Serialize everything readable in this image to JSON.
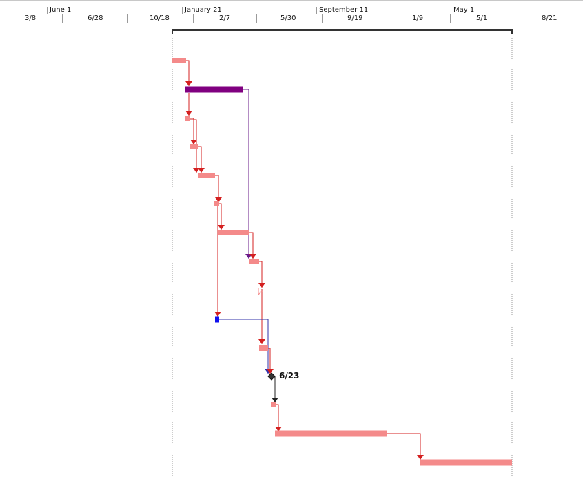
{
  "timescale": {
    "major": [
      "June 1",
      "January 21",
      "September 11",
      "May 1"
    ],
    "minor": [
      "3/8",
      "6/28",
      "10/18",
      "2/7",
      "5/30",
      "9/19",
      "1/9",
      "5/1",
      "8/21"
    ]
  },
  "milestone": {
    "label": "6/23"
  },
  "colors": {
    "task_bar": "#f48a8a",
    "task_link": "#d42020",
    "summary_bar": "#800080",
    "summary_link": "#6a1a8a",
    "external_task": "#1010ee",
    "external_link": "#3030aa",
    "milestone": "#333333",
    "project_summary": "#333333"
  }
}
